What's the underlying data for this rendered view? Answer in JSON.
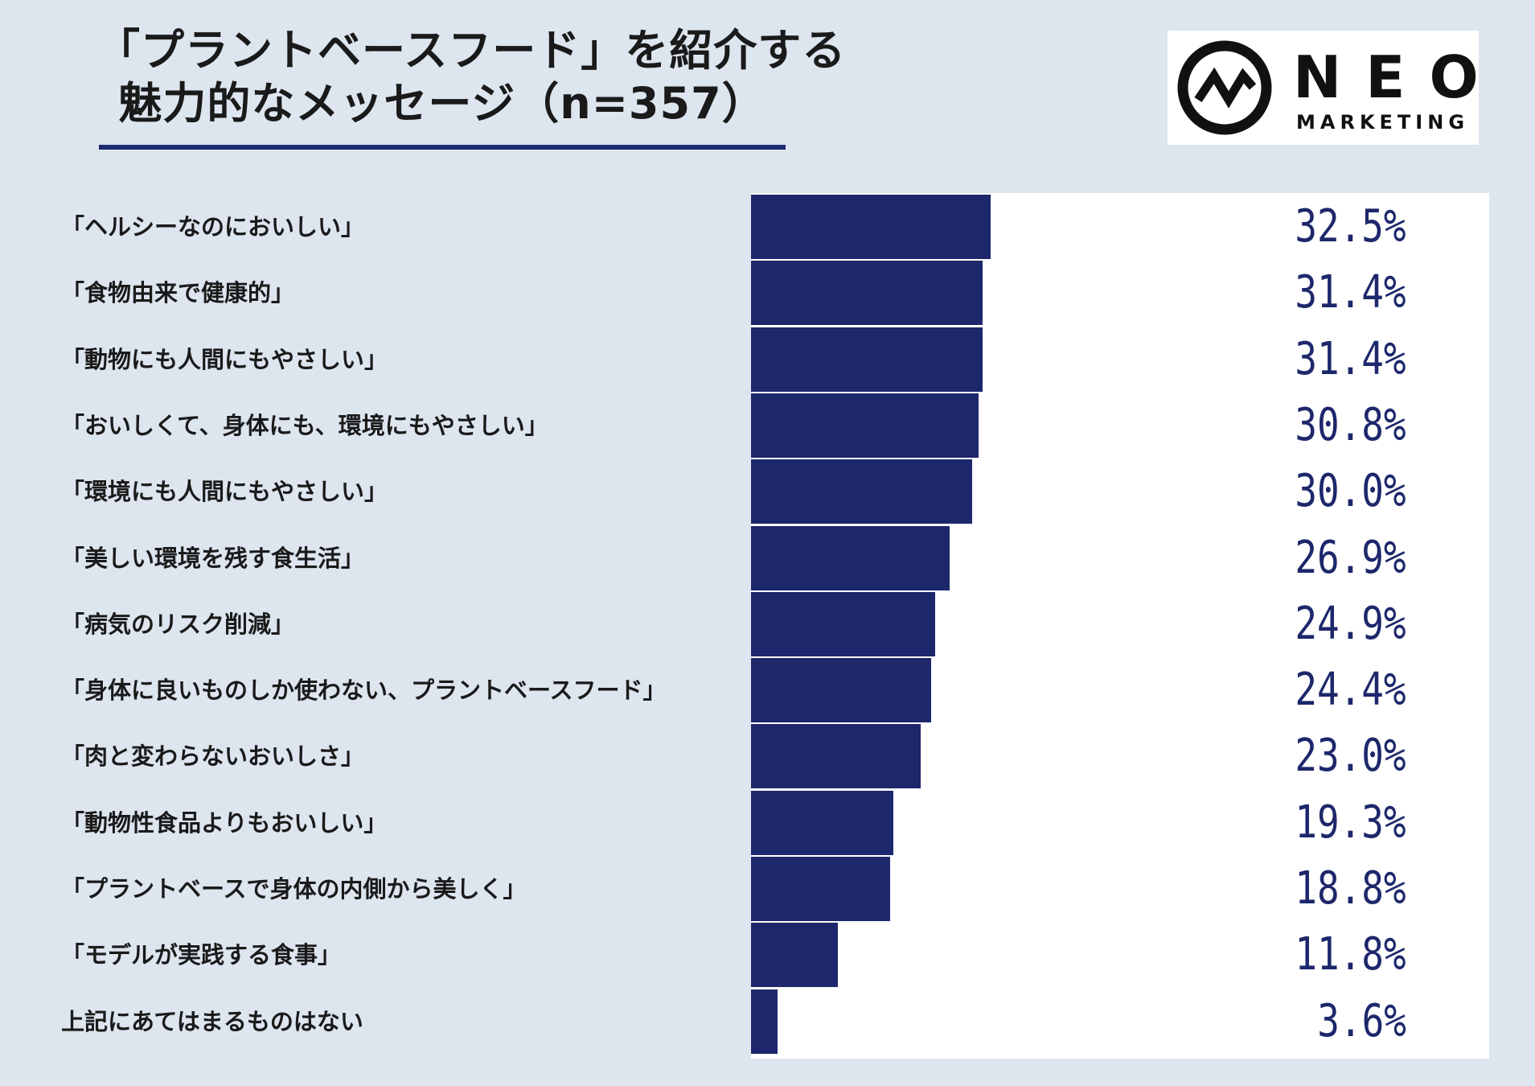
{
  "title": {
    "line1": "「プラントベースフード」を紹介する",
    "line2": "魅力的なメッセージ（n=357）"
  },
  "logo": {
    "word": "NEO",
    "sub": "MARKETING",
    "icon": "neo-marketing-logo-icon"
  },
  "colors": {
    "background": "#dde5ef",
    "bar": "#1d276b",
    "plot_area": "#ffffff",
    "rule": "#1d2a6e"
  },
  "chart_data": {
    "type": "bar",
    "orientation": "horizontal",
    "categories": [
      "「ヘルシーなのにおいしい」",
      "「食物由来で健康的」",
      "「動物にも人間にもやさしい」",
      "「おいしくて、身体にも、環境にもやさしい」",
      "「環境にも人間にもやさしい」",
      "「美しい環境を残す食生活」",
      "「病気のリスク削減」",
      "「身体に良いものしか使わない、プラントベースフード」",
      "「肉と変わらないおいしさ」",
      "「動物性食品よりもおいしい」",
      "「プラントベースで身体の内側から美しく」",
      "「モデルが実践する食事」",
      "上記にあてはまるものはない"
    ],
    "values": [
      32.5,
      31.4,
      31.4,
      30.8,
      30.0,
      26.9,
      24.9,
      24.4,
      23.0,
      19.3,
      18.8,
      11.8,
      3.6
    ],
    "value_labels": [
      "32.5%",
      "31.4%",
      "31.4%",
      "30.8%",
      "30.0%",
      "26.9%",
      "24.9%",
      "24.4%",
      "23.0%",
      "19.3%",
      "18.8%",
      "11.8%",
      "3.6%"
    ],
    "xlim": [
      0,
      100
    ],
    "grid": false,
    "legend": "none"
  }
}
